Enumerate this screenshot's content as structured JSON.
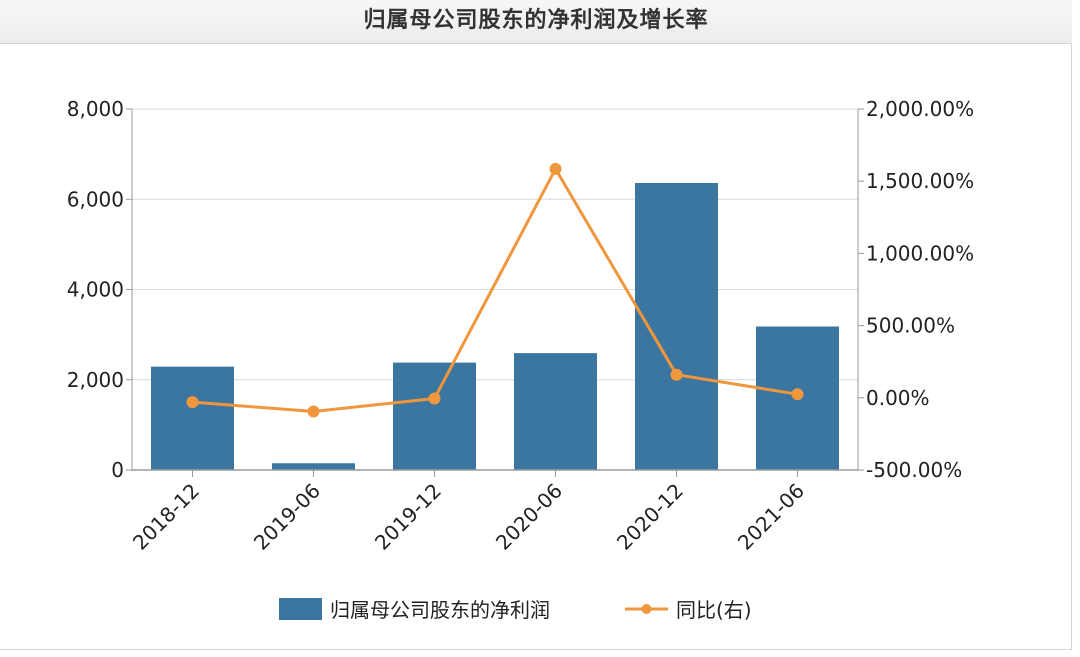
{
  "chart_data": {
    "type": "bar",
    "title": "归属母公司股东的净利润及增长率",
    "categories": [
      "2018-12",
      "2019-06",
      "2019-12",
      "2020-06",
      "2020-12",
      "2021-06"
    ],
    "series": [
      {
        "name": "归属母公司股东的净利润",
        "type": "bar",
        "axis": "left",
        "color": "#3b76a0",
        "values": [
          2290,
          150,
          2380,
          2590,
          6360,
          3180
        ]
      },
      {
        "name": "同比(右)",
        "type": "line",
        "axis": "right",
        "color": "#f0963c",
        "values": [
          -30,
          -95,
          -5,
          1585,
          160,
          25
        ]
      }
    ],
    "y_left": {
      "min": 0,
      "max": 8000,
      "ticks": [
        0,
        2000,
        4000,
        6000,
        8000
      ],
      "tick_labels": [
        "0",
        "2,000",
        "4,000",
        "6,000",
        "8,000"
      ]
    },
    "y_right": {
      "min": -500,
      "max": 2000,
      "ticks": [
        -500,
        0,
        500,
        1000,
        1500,
        2000
      ],
      "tick_labels": [
        "-500.00%",
        "0.00%",
        "500.00%",
        "1,000.00%",
        "1,500.00%",
        "2,000.00%"
      ]
    },
    "grid": true,
    "legend_position": "bottom-center"
  }
}
